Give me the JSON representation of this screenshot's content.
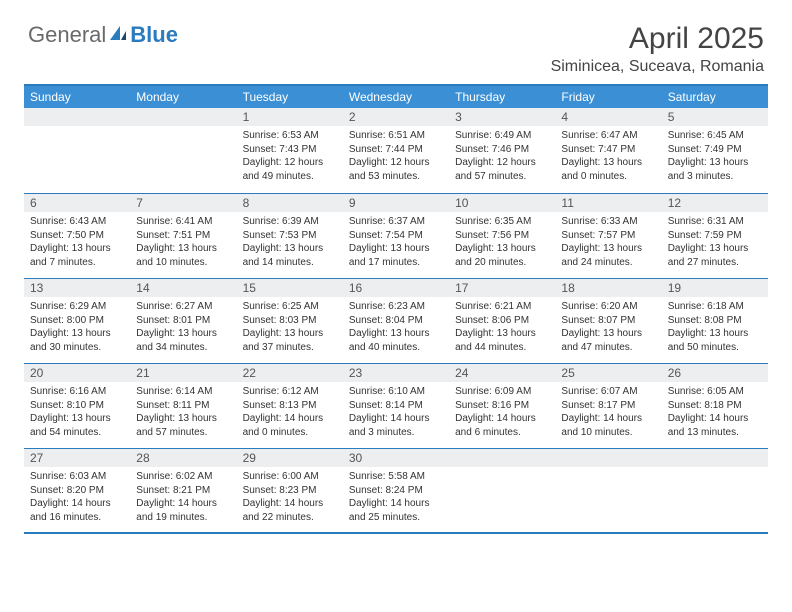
{
  "brand": {
    "part1": "General",
    "part2": "Blue"
  },
  "title": "April 2025",
  "location": "Siminicea, Suceava, Romania",
  "colors": {
    "headerBg": "#3b8fd4",
    "border": "#2b7bbf",
    "dayNumBg": "#eceeef",
    "pageBg": "#ffffff",
    "text": "#333333"
  },
  "dayHeaders": [
    "Sunday",
    "Monday",
    "Tuesday",
    "Wednesday",
    "Thursday",
    "Friday",
    "Saturday"
  ],
  "weeks": [
    [
      null,
      null,
      {
        "n": "1",
        "sr": "Sunrise: 6:53 AM",
        "ss": "Sunset: 7:43 PM",
        "dl": "Daylight: 12 hours and 49 minutes."
      },
      {
        "n": "2",
        "sr": "Sunrise: 6:51 AM",
        "ss": "Sunset: 7:44 PM",
        "dl": "Daylight: 12 hours and 53 minutes."
      },
      {
        "n": "3",
        "sr": "Sunrise: 6:49 AM",
        "ss": "Sunset: 7:46 PM",
        "dl": "Daylight: 12 hours and 57 minutes."
      },
      {
        "n": "4",
        "sr": "Sunrise: 6:47 AM",
        "ss": "Sunset: 7:47 PM",
        "dl": "Daylight: 13 hours and 0 minutes."
      },
      {
        "n": "5",
        "sr": "Sunrise: 6:45 AM",
        "ss": "Sunset: 7:49 PM",
        "dl": "Daylight: 13 hours and 3 minutes."
      }
    ],
    [
      {
        "n": "6",
        "sr": "Sunrise: 6:43 AM",
        "ss": "Sunset: 7:50 PM",
        "dl": "Daylight: 13 hours and 7 minutes."
      },
      {
        "n": "7",
        "sr": "Sunrise: 6:41 AM",
        "ss": "Sunset: 7:51 PM",
        "dl": "Daylight: 13 hours and 10 minutes."
      },
      {
        "n": "8",
        "sr": "Sunrise: 6:39 AM",
        "ss": "Sunset: 7:53 PM",
        "dl": "Daylight: 13 hours and 14 minutes."
      },
      {
        "n": "9",
        "sr": "Sunrise: 6:37 AM",
        "ss": "Sunset: 7:54 PM",
        "dl": "Daylight: 13 hours and 17 minutes."
      },
      {
        "n": "10",
        "sr": "Sunrise: 6:35 AM",
        "ss": "Sunset: 7:56 PM",
        "dl": "Daylight: 13 hours and 20 minutes."
      },
      {
        "n": "11",
        "sr": "Sunrise: 6:33 AM",
        "ss": "Sunset: 7:57 PM",
        "dl": "Daylight: 13 hours and 24 minutes."
      },
      {
        "n": "12",
        "sr": "Sunrise: 6:31 AM",
        "ss": "Sunset: 7:59 PM",
        "dl": "Daylight: 13 hours and 27 minutes."
      }
    ],
    [
      {
        "n": "13",
        "sr": "Sunrise: 6:29 AM",
        "ss": "Sunset: 8:00 PM",
        "dl": "Daylight: 13 hours and 30 minutes."
      },
      {
        "n": "14",
        "sr": "Sunrise: 6:27 AM",
        "ss": "Sunset: 8:01 PM",
        "dl": "Daylight: 13 hours and 34 minutes."
      },
      {
        "n": "15",
        "sr": "Sunrise: 6:25 AM",
        "ss": "Sunset: 8:03 PM",
        "dl": "Daylight: 13 hours and 37 minutes."
      },
      {
        "n": "16",
        "sr": "Sunrise: 6:23 AM",
        "ss": "Sunset: 8:04 PM",
        "dl": "Daylight: 13 hours and 40 minutes."
      },
      {
        "n": "17",
        "sr": "Sunrise: 6:21 AM",
        "ss": "Sunset: 8:06 PM",
        "dl": "Daylight: 13 hours and 44 minutes."
      },
      {
        "n": "18",
        "sr": "Sunrise: 6:20 AM",
        "ss": "Sunset: 8:07 PM",
        "dl": "Daylight: 13 hours and 47 minutes."
      },
      {
        "n": "19",
        "sr": "Sunrise: 6:18 AM",
        "ss": "Sunset: 8:08 PM",
        "dl": "Daylight: 13 hours and 50 minutes."
      }
    ],
    [
      {
        "n": "20",
        "sr": "Sunrise: 6:16 AM",
        "ss": "Sunset: 8:10 PM",
        "dl": "Daylight: 13 hours and 54 minutes."
      },
      {
        "n": "21",
        "sr": "Sunrise: 6:14 AM",
        "ss": "Sunset: 8:11 PM",
        "dl": "Daylight: 13 hours and 57 minutes."
      },
      {
        "n": "22",
        "sr": "Sunrise: 6:12 AM",
        "ss": "Sunset: 8:13 PM",
        "dl": "Daylight: 14 hours and 0 minutes."
      },
      {
        "n": "23",
        "sr": "Sunrise: 6:10 AM",
        "ss": "Sunset: 8:14 PM",
        "dl": "Daylight: 14 hours and 3 minutes."
      },
      {
        "n": "24",
        "sr": "Sunrise: 6:09 AM",
        "ss": "Sunset: 8:16 PM",
        "dl": "Daylight: 14 hours and 6 minutes."
      },
      {
        "n": "25",
        "sr": "Sunrise: 6:07 AM",
        "ss": "Sunset: 8:17 PM",
        "dl": "Daylight: 14 hours and 10 minutes."
      },
      {
        "n": "26",
        "sr": "Sunrise: 6:05 AM",
        "ss": "Sunset: 8:18 PM",
        "dl": "Daylight: 14 hours and 13 minutes."
      }
    ],
    [
      {
        "n": "27",
        "sr": "Sunrise: 6:03 AM",
        "ss": "Sunset: 8:20 PM",
        "dl": "Daylight: 14 hours and 16 minutes."
      },
      {
        "n": "28",
        "sr": "Sunrise: 6:02 AM",
        "ss": "Sunset: 8:21 PM",
        "dl": "Daylight: 14 hours and 19 minutes."
      },
      {
        "n": "29",
        "sr": "Sunrise: 6:00 AM",
        "ss": "Sunset: 8:23 PM",
        "dl": "Daylight: 14 hours and 22 minutes."
      },
      {
        "n": "30",
        "sr": "Sunrise: 5:58 AM",
        "ss": "Sunset: 8:24 PM",
        "dl": "Daylight: 14 hours and 25 minutes."
      },
      null,
      null,
      null
    ]
  ]
}
